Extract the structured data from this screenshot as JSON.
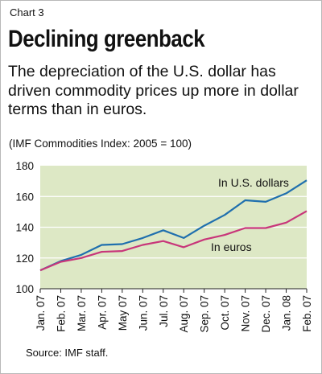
{
  "header": {
    "label": "Chart 3",
    "title": "Declining greenback",
    "subtitle": "The depreciation of the U.S. dollar has driven commodity prices up more in dollar terms than in euros.",
    "units": "(IMF Commodities Index: 2005 = 100)"
  },
  "footer": {
    "source": "Source: IMF staff."
  },
  "chart_data": {
    "type": "line",
    "categories": [
      "Jan. 07",
      "Feb. 07",
      "Mar. 07",
      "Apr. 07",
      "May 07",
      "Jun. 07",
      "Jul. 07",
      "Aug. 07",
      "Sep. 07",
      "Oct. 07",
      "Nov. 07",
      "Dec. 07",
      "Jan. 08",
      "Feb. 07"
    ],
    "ylim": [
      100,
      180
    ],
    "yticks": [
      100,
      120,
      140,
      160,
      180
    ],
    "grid": true,
    "plot_background": "#dde8c5",
    "series": [
      {
        "name": "In U.S. dollars",
        "color": "#1f6fae",
        "values": [
          112,
          118,
          122,
          128.5,
          129,
          133,
          138,
          133,
          141,
          148,
          157.5,
          156.5,
          162,
          170.5
        ]
      },
      {
        "name": "In euros",
        "color": "#c8367a",
        "values": [
          112,
          117.5,
          120,
          124,
          124.5,
          128.5,
          131,
          127,
          132,
          135,
          139.5,
          139.5,
          143,
          150.5
        ]
      }
    ]
  }
}
